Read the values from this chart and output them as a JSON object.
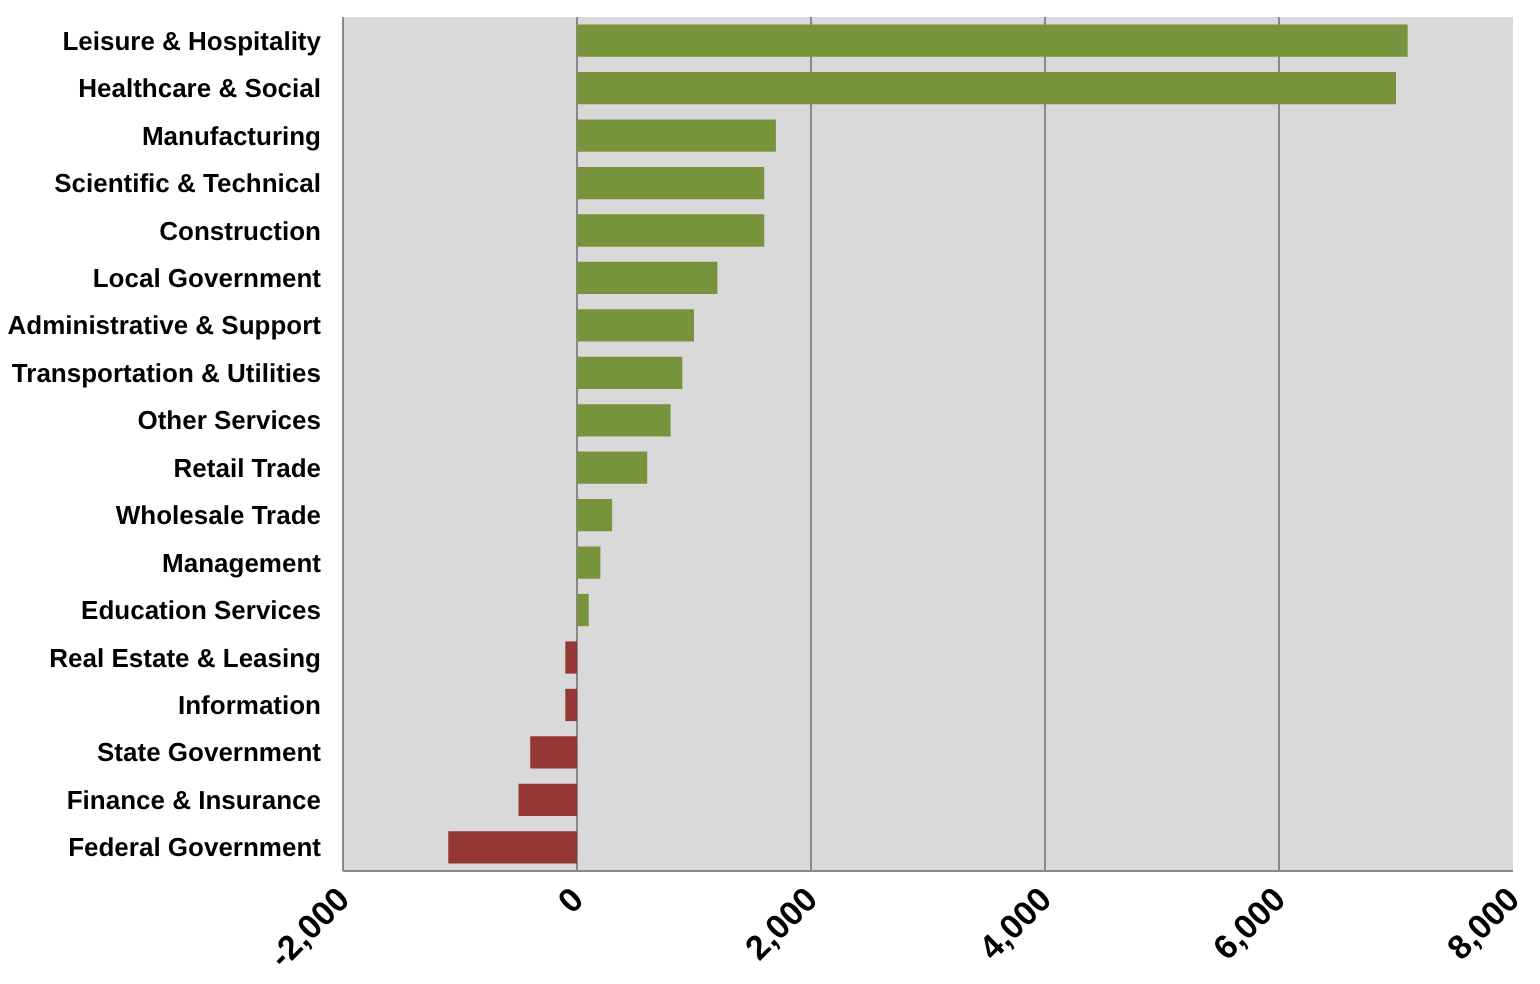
{
  "chart_data": {
    "type": "bar",
    "orientation": "horizontal",
    "categories": [
      "Leisure & Hospitality",
      "Healthcare & Social",
      "Manufacturing",
      "Scientific & Technical",
      "Construction",
      "Local Government",
      "Administrative & Support",
      "Transportation & Utilities",
      "Other Services",
      "Retail Trade",
      "Wholesale Trade",
      "Management",
      "Education Services",
      "Real Estate & Leasing",
      "Information",
      "State Government",
      "Finance & Insurance",
      "Federal Government"
    ],
    "values": [
      7100,
      7000,
      1700,
      1600,
      1600,
      1200,
      1000,
      900,
      800,
      600,
      300,
      200,
      100,
      -100,
      -100,
      -400,
      -500,
      -1100
    ],
    "colors": [
      "#77933c",
      "#77933c",
      "#77933c",
      "#77933c",
      "#77933c",
      "#77933c",
      "#77933c",
      "#77933c",
      "#77933c",
      "#77933c",
      "#77933c",
      "#77933c",
      "#77933c",
      "#953735",
      "#953735",
      "#953735",
      "#953735",
      "#953735"
    ],
    "xlim": [
      -2000,
      8000
    ],
    "xticks": [
      {
        "value": -2000,
        "label": "-2,000"
      },
      0,
      {
        "value": 2000,
        "label": "2,000"
      },
      {
        "value": 4000,
        "label": "4,000"
      },
      {
        "value": 6000,
        "label": "6,000"
      },
      {
        "value": 8000,
        "label": "8,000"
      }
    ],
    "grid": "x"
  }
}
